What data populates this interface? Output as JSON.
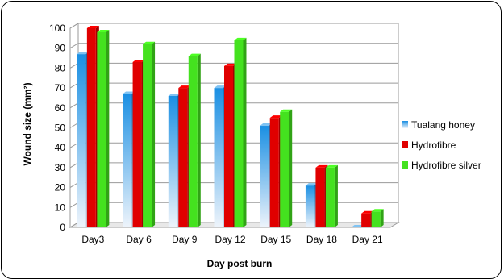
{
  "chart_data": {
    "type": "bar",
    "title": "",
    "xlabel": "Day post burn",
    "ylabel": "Wound size (mm²)",
    "ylim": [
      0,
      100
    ],
    "yticks": [
      0,
      10,
      20,
      30,
      40,
      50,
      60,
      70,
      80,
      90,
      100
    ],
    "grid": true,
    "legend_position": "right",
    "categories": [
      "Day3",
      "Day 6",
      "Day 9",
      "Day 12",
      "Day 15",
      "Day 18",
      "Day 21"
    ],
    "series": [
      {
        "name": "Tualang honey",
        "color": "#2d9be8",
        "values": [
          87,
          67,
          66,
          70,
          51,
          21,
          0
        ]
      },
      {
        "name": "Hydrofibre",
        "color": "#e00000",
        "values": [
          100,
          83,
          70,
          81,
          55,
          30,
          7
        ]
      },
      {
        "name": "Hydrofibre silver",
        "color": "#44e21f",
        "values": [
          98,
          92,
          86,
          94,
          58,
          30,
          8
        ]
      }
    ]
  }
}
